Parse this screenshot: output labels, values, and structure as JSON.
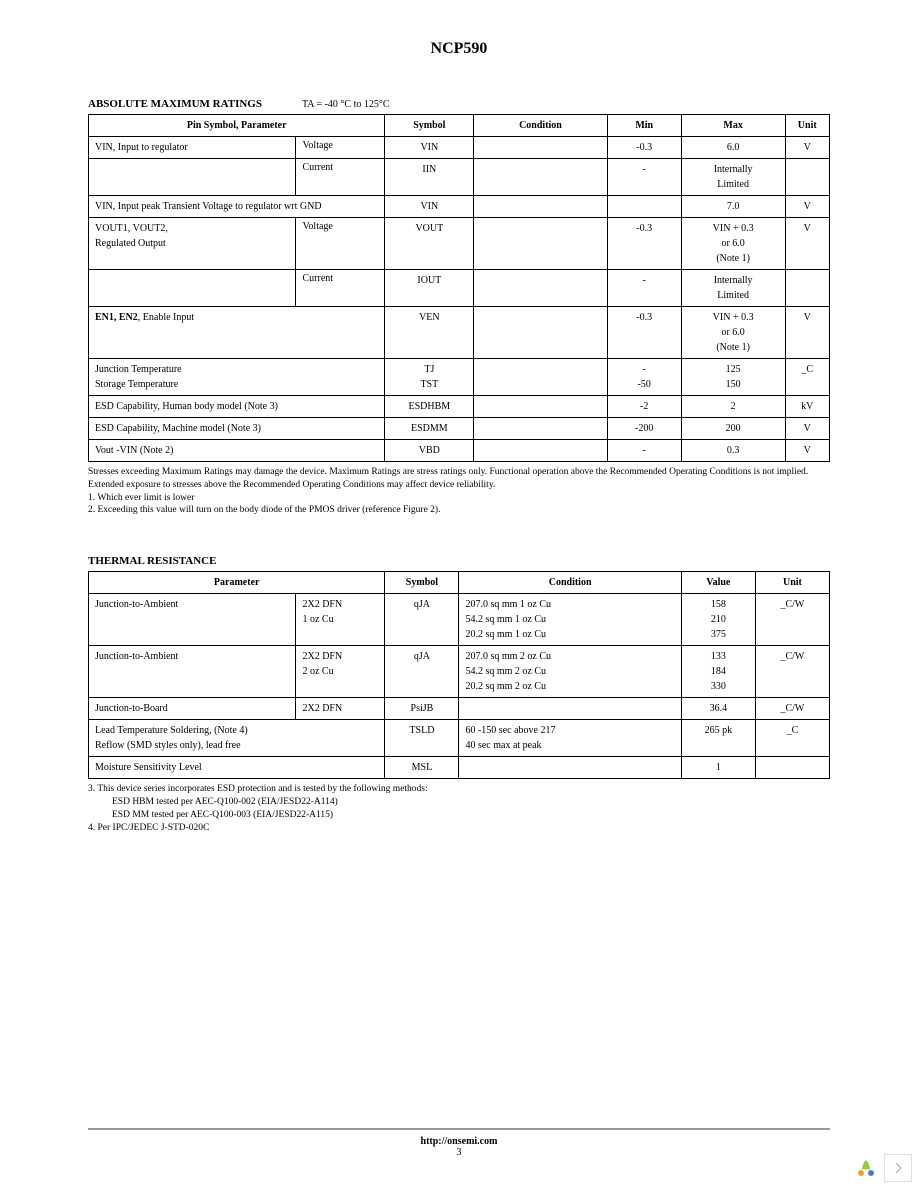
{
  "doc": {
    "title": "NCP590",
    "footer_url": "http://onsemi.com",
    "page_number": "3"
  },
  "abs_max": {
    "heading": "ABSOLUTE MAXIMUM RATINGS",
    "subheading": "TA = -40 °C to 125°C",
    "columns": {
      "pin": "Pin Symbol, Parameter",
      "symbol": "Symbol",
      "condition": "Condition",
      "min": "Min",
      "max": "Max",
      "unit": "Unit"
    },
    "rows": [
      {
        "pin": "VIN, Input to regulator",
        "aspect": "Voltage",
        "symbol": "VIN",
        "condition": "",
        "min": "-0.3",
        "max": "6.0",
        "unit": "V"
      },
      {
        "pin": "",
        "aspect": "Current",
        "symbol": "IIN",
        "condition": "",
        "min": "-",
        "max": "Internally\nLimited",
        "unit": ""
      },
      {
        "pin": "VIN, Input peak Transient Voltage to regulator wrt GND",
        "aspect": "",
        "symbol": "VIN",
        "condition": "",
        "min": "",
        "max": "7.0",
        "unit": "V",
        "span2": true
      },
      {
        "pin": "VOUT1, VOUT2,\nRegulated Output",
        "aspect": "Voltage",
        "symbol": "VOUT",
        "condition": "",
        "min": "-0.3",
        "max": "VIN + 0.3\nor 6.0\n(Note 1)",
        "unit": "V"
      },
      {
        "pin": "",
        "aspect": "Current",
        "symbol": "IOUT",
        "condition": "",
        "min": "-",
        "max": "Internally\nLimited",
        "unit": ""
      },
      {
        "pin": "EN1, EN2, Enable Input",
        "aspect": "",
        "symbol": "VEN",
        "condition": "",
        "min": "-0.3",
        "max": "VIN + 0.3\nor 6.0\n(Note 1)",
        "unit": "V",
        "span2": true,
        "bold_pin_prefix": "EN1, EN2"
      },
      {
        "pin": "Junction Temperature\nStorage Temperature",
        "aspect": "",
        "symbol": "TJ\nTST",
        "condition": "",
        "min": "-\n-50",
        "max": "125\n150",
        "unit": "_C",
        "span2": true
      },
      {
        "pin": "ESD Capability, Human body model (Note 3)",
        "aspect": "",
        "symbol": "ESDHBM",
        "condition": "",
        "min": "-2",
        "max": "2",
        "unit": "kV",
        "span2": true
      },
      {
        "pin": "ESD Capability, Machine model (Note 3)",
        "aspect": "",
        "symbol": "ESDMM",
        "condition": "",
        "min": "-200",
        "max": "200",
        "unit": "V",
        "span2": true
      },
      {
        "pin": "Vout -VIN (Note 2)",
        "aspect": "",
        "symbol": "VBD",
        "condition": "",
        "min": "-",
        "max": "0.3",
        "unit": "V",
        "span2": true
      }
    ],
    "footnote_main": "Stresses exceeding Maximum Ratings may damage the device. Maximum Ratings are stress ratings only. Functional operation above the Recommended Operating Conditions is not implied. Extended exposure to stresses above the Recommended Operating Conditions may affect device reliability.",
    "footnote_1": "1. Which ever limit is lower",
    "footnote_2": "2. Exceeding this value will turn on the body diode of the PMOS driver (reference Figure 2)."
  },
  "thermal": {
    "heading": "THERMAL RESISTANCE",
    "columns": {
      "param": "Parameter",
      "symbol": "Symbol",
      "condition": "Condition",
      "value": "Value",
      "unit": "Unit"
    },
    "rows": [
      {
        "param": "Junction-to-Ambient",
        "pkg": "2X2 DFN\n1 oz Cu",
        "symbol": "qJA",
        "condition": "207.0 sq mm 1 oz Cu\n54.2 sq mm 1 oz Cu\n20.2 sq mm 1 oz Cu",
        "value": "158\n210\n375",
        "unit": "_C/W"
      },
      {
        "param": "Junction-to-Ambient",
        "pkg": "2X2 DFN\n2 oz Cu",
        "symbol": "qJA",
        "condition": "207.0 sq mm 2 oz Cu\n54.2 sq mm 2 oz Cu\n20.2 sq mm 2 oz Cu",
        "value": "133\n184\n330",
        "unit": "_C/W"
      },
      {
        "param": "Junction-to-Board",
        "pkg": "2X2 DFN",
        "symbol": "PsiJB",
        "condition": "",
        "value": "36.4",
        "unit": "_C/W"
      },
      {
        "param": "Lead Temperature Soldering, (Note 4)\nReflow (SMD styles only), lead free",
        "pkg": "",
        "symbol": "TSLD",
        "condition": "60 -150 sec above 217\n40 sec max at peak",
        "value": "265 pk",
        "unit": "_C",
        "span2": true
      },
      {
        "param": "Moisture Sensitivity Level",
        "pkg": "",
        "symbol": "MSL",
        "condition": "",
        "value": "1",
        "unit": "",
        "span2": true
      }
    ],
    "footnote_3": "3. This device series incorporates ESD protection and is tested by the following methods:",
    "footnote_3a": "ESD HBM tested per AEC-Q100-002 (EIA/JESD22-A114)",
    "footnote_3b": "ESD MM tested per AEC-Q100-003 (EIA/JESD22-A115)",
    "footnote_4": "4. Per IPC/JEDEC J-STD-020C"
  }
}
